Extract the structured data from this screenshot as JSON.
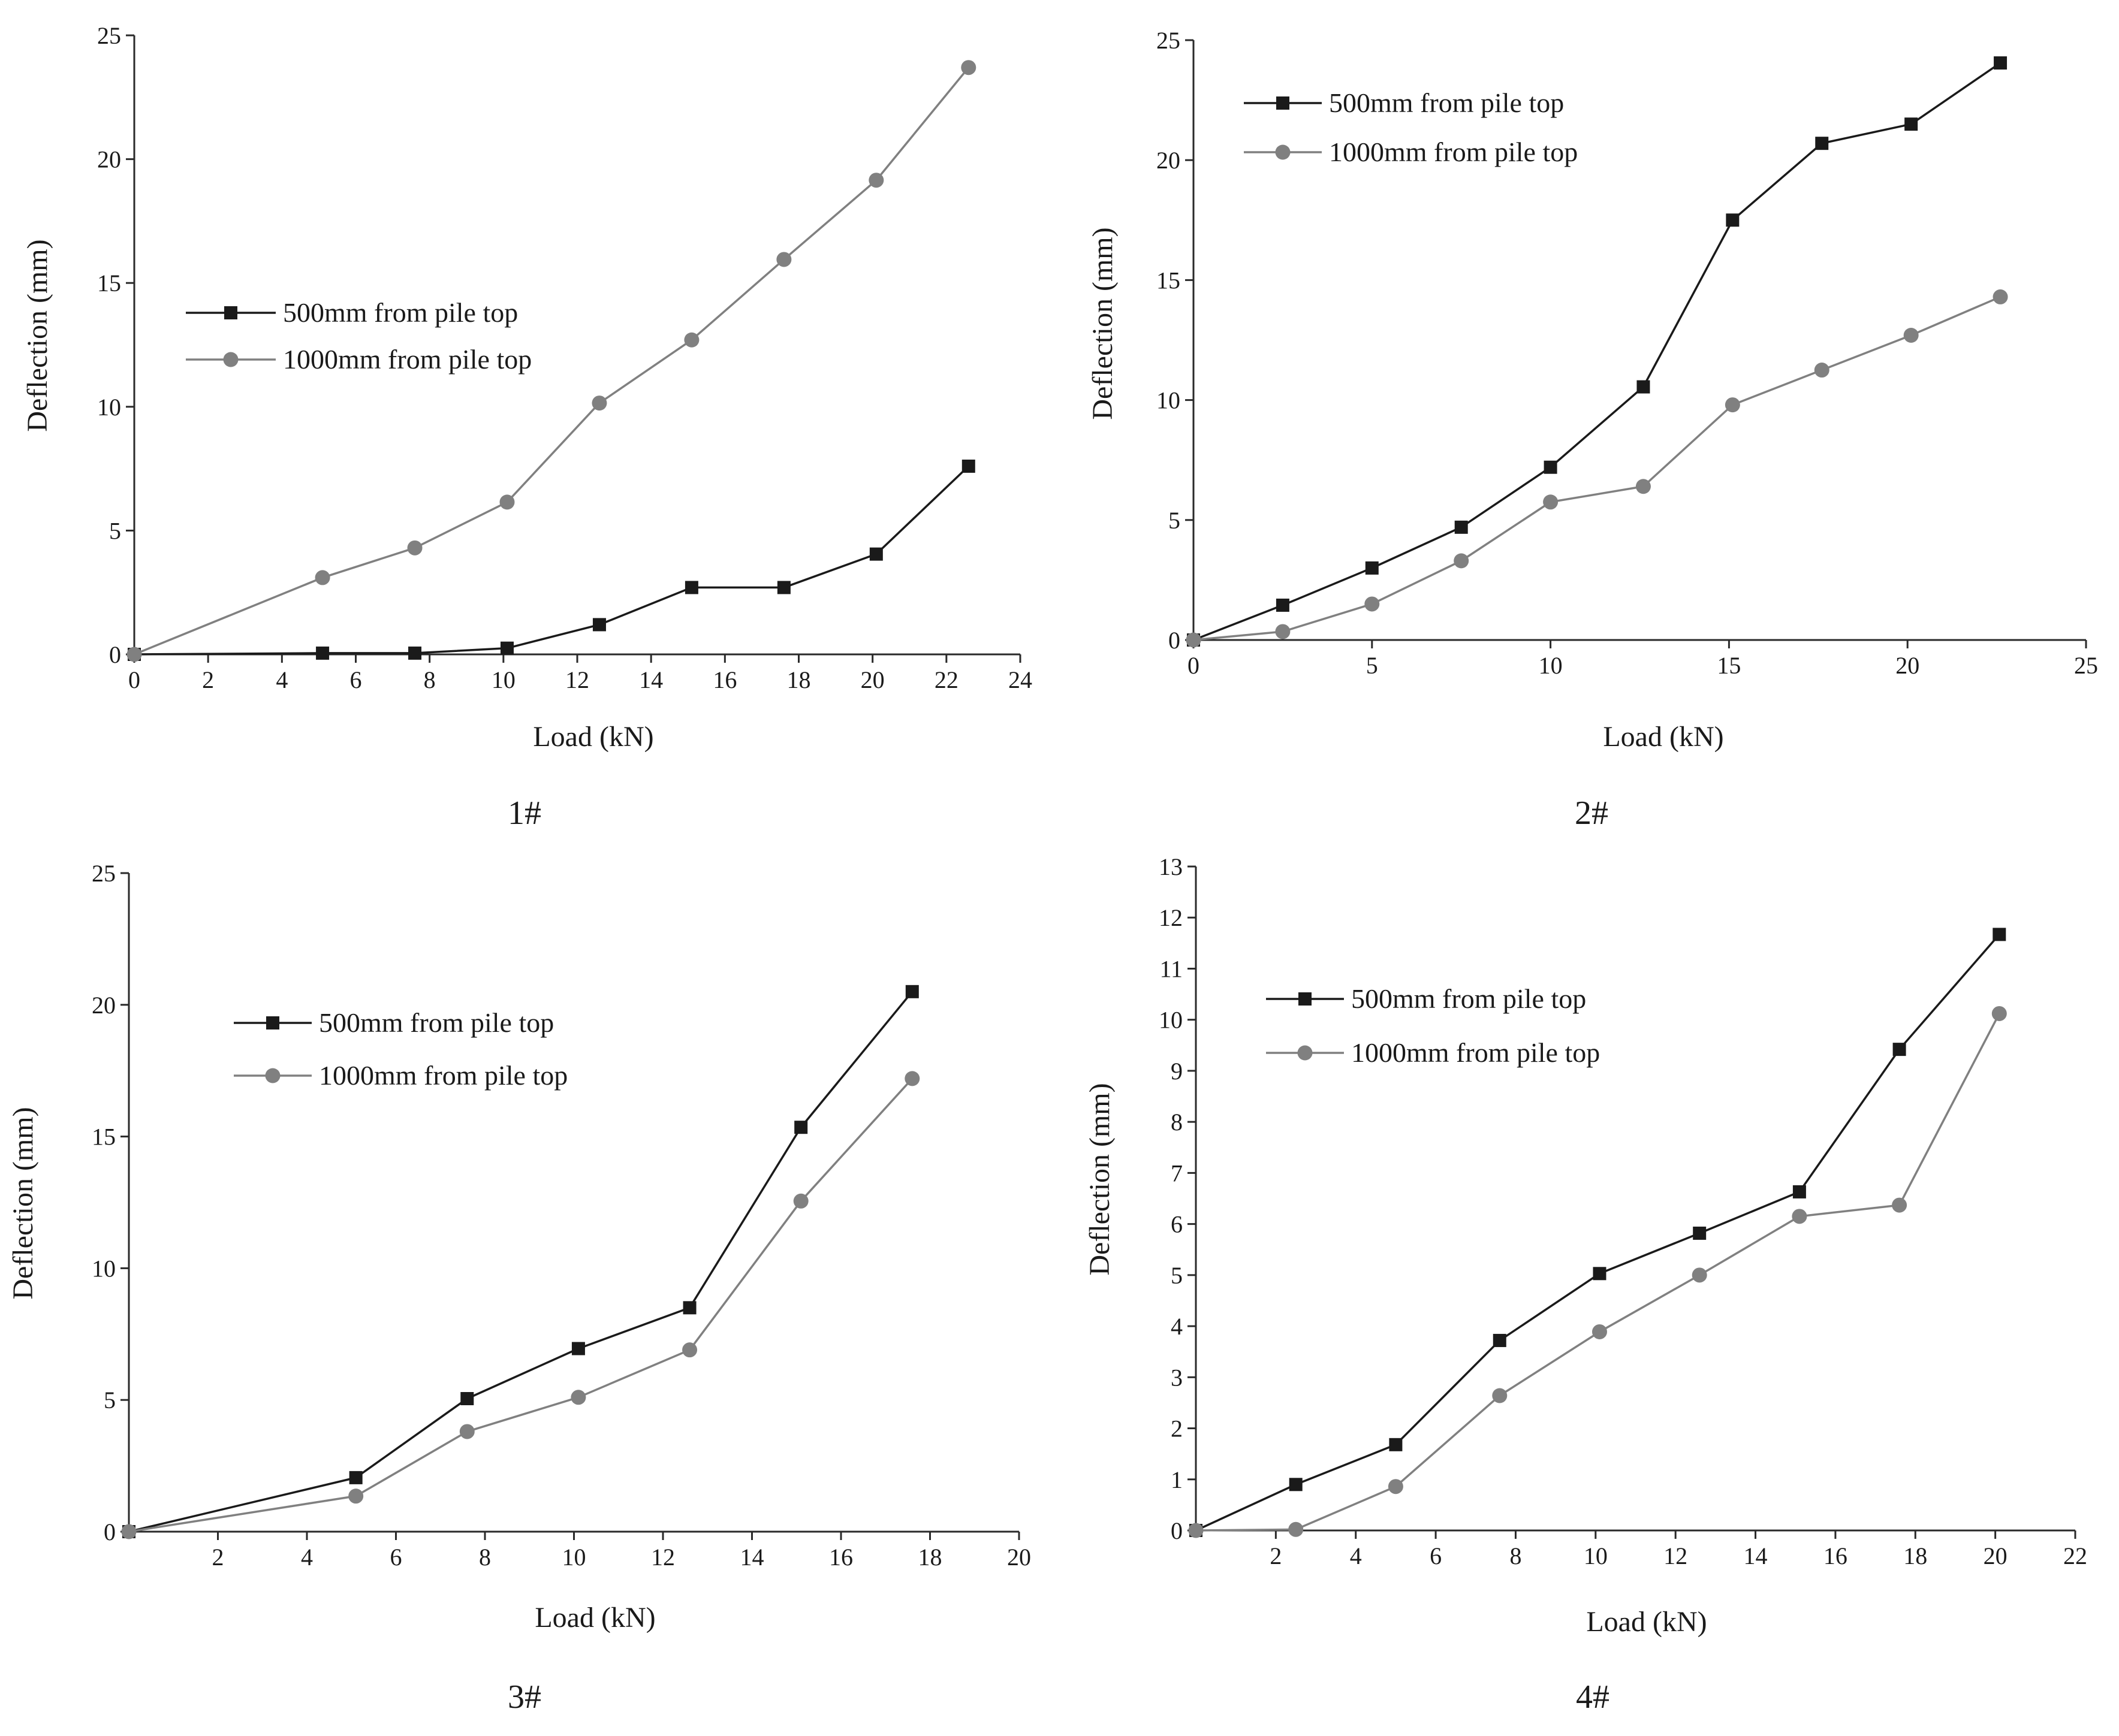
{
  "figure": {
    "panels": [
      "1#",
      "2#",
      "3#",
      "4#"
    ]
  },
  "chart_data": [
    {
      "type": "line",
      "caption": "1#",
      "xlabel": "Load (kN)",
      "ylabel": "Deflection (mm)",
      "xlim": [
        0,
        24
      ],
      "ylim": [
        0,
        25
      ],
      "xticks": [
        0,
        2,
        4,
        6,
        8,
        10,
        12,
        14,
        16,
        18,
        20,
        22,
        24
      ],
      "yticks": [
        0,
        5,
        10,
        15,
        20,
        25
      ],
      "legend_position": "middle-left",
      "series": [
        {
          "name": "500mm from pile top",
          "marker": "square",
          "color": "#1a1a1a",
          "x": [
            0,
            5.1,
            7.6,
            10.1,
            12.6,
            15.1,
            17.6,
            20.1,
            22.6
          ],
          "y": [
            0,
            0.05,
            0.05,
            0.25,
            1.2,
            2.7,
            2.7,
            4.05,
            7.6
          ]
        },
        {
          "name": "1000mm from pile top",
          "marker": "circle",
          "color": "#808080",
          "x": [
            0,
            5.1,
            7.6,
            10.1,
            12.6,
            15.1,
            17.6,
            20.1,
            22.6
          ],
          "y": [
            0,
            3.1,
            4.3,
            6.15,
            10.15,
            12.7,
            15.95,
            19.15,
            23.7
          ]
        }
      ]
    },
    {
      "type": "line",
      "caption": "2#",
      "xlabel": "Load (kN)",
      "ylabel": "Deflection (mm)",
      "xlim": [
        0,
        25
      ],
      "ylim": [
        0,
        25
      ],
      "xticks": [
        0,
        5,
        10,
        15,
        20,
        25
      ],
      "yticks": [
        0,
        5,
        10,
        15,
        20,
        25
      ],
      "legend_position": "top-left",
      "series": [
        {
          "name": "500mm from pile top",
          "marker": "square",
          "color": "#1a1a1a",
          "x": [
            0,
            2.5,
            5,
            7.5,
            10,
            12.6,
            15.1,
            17.6,
            20.1,
            22.6
          ],
          "y": [
            0,
            1.45,
            3.0,
            4.7,
            7.2,
            10.55,
            17.5,
            20.7,
            21.5,
            24.05
          ]
        },
        {
          "name": "1000mm from pile top",
          "marker": "circle",
          "color": "#808080",
          "x": [
            0,
            2.5,
            5,
            7.5,
            10,
            12.6,
            15.1,
            17.6,
            20.1,
            22.6
          ],
          "y": [
            0,
            0.35,
            1.5,
            3.3,
            5.75,
            6.4,
            9.8,
            11.25,
            12.7,
            14.3
          ]
        }
      ]
    },
    {
      "type": "line",
      "caption": "3#",
      "xlabel": "Load (kN)",
      "ylabel": "Deflection (mm)",
      "xlim": [
        0,
        20
      ],
      "ylim": [
        0,
        25
      ],
      "xticks": [
        2,
        4,
        6,
        8,
        10,
        12,
        14,
        16,
        18,
        20
      ],
      "yticks": [
        0,
        5,
        10,
        15,
        20,
        25
      ],
      "legend_position": "top-center",
      "series": [
        {
          "name": "500mm from pile top",
          "marker": "square",
          "color": "#1a1a1a",
          "x": [
            0,
            5.1,
            7.6,
            10.1,
            12.6,
            15.1,
            17.6
          ],
          "y": [
            0,
            2.05,
            5.05,
            6.95,
            8.5,
            15.35,
            20.5
          ]
        },
        {
          "name": "1000mm from pile top",
          "marker": "circle",
          "color": "#808080",
          "x": [
            0,
            5.1,
            7.6,
            10.1,
            12.6,
            15.1,
            17.6
          ],
          "y": [
            0,
            1.35,
            3.8,
            5.1,
            6.9,
            12.55,
            17.2
          ]
        }
      ]
    },
    {
      "type": "line",
      "caption": "4#",
      "xlabel": "Load (kN)",
      "ylabel": "Deflection (mm)",
      "xlim": [
        0,
        22
      ],
      "ylim": [
        0,
        13
      ],
      "xticks": [
        2,
        4,
        6,
        8,
        10,
        12,
        14,
        16,
        18,
        20,
        22
      ],
      "yticks": [
        0,
        1,
        2,
        3,
        4,
        5,
        6,
        7,
        8,
        9,
        10,
        11,
        12,
        13
      ],
      "legend_position": "top-left",
      "series": [
        {
          "name": "500mm from pile top",
          "marker": "square",
          "color": "#1a1a1a",
          "x": [
            0,
            2.5,
            5.0,
            7.6,
            10.1,
            12.6,
            15.1,
            17.6,
            20.1
          ],
          "y": [
            0,
            0.9,
            1.68,
            3.72,
            5.03,
            5.82,
            6.63,
            9.42,
            11.67
          ]
        },
        {
          "name": "1000mm from pile top",
          "marker": "circle",
          "color": "#808080",
          "x": [
            0,
            2.5,
            5.0,
            7.6,
            10.1,
            12.6,
            15.1,
            17.6,
            20.1
          ],
          "y": [
            0,
            0.02,
            0.86,
            2.64,
            3.89,
            5.0,
            6.15,
            6.37,
            10.12
          ]
        }
      ]
    }
  ]
}
